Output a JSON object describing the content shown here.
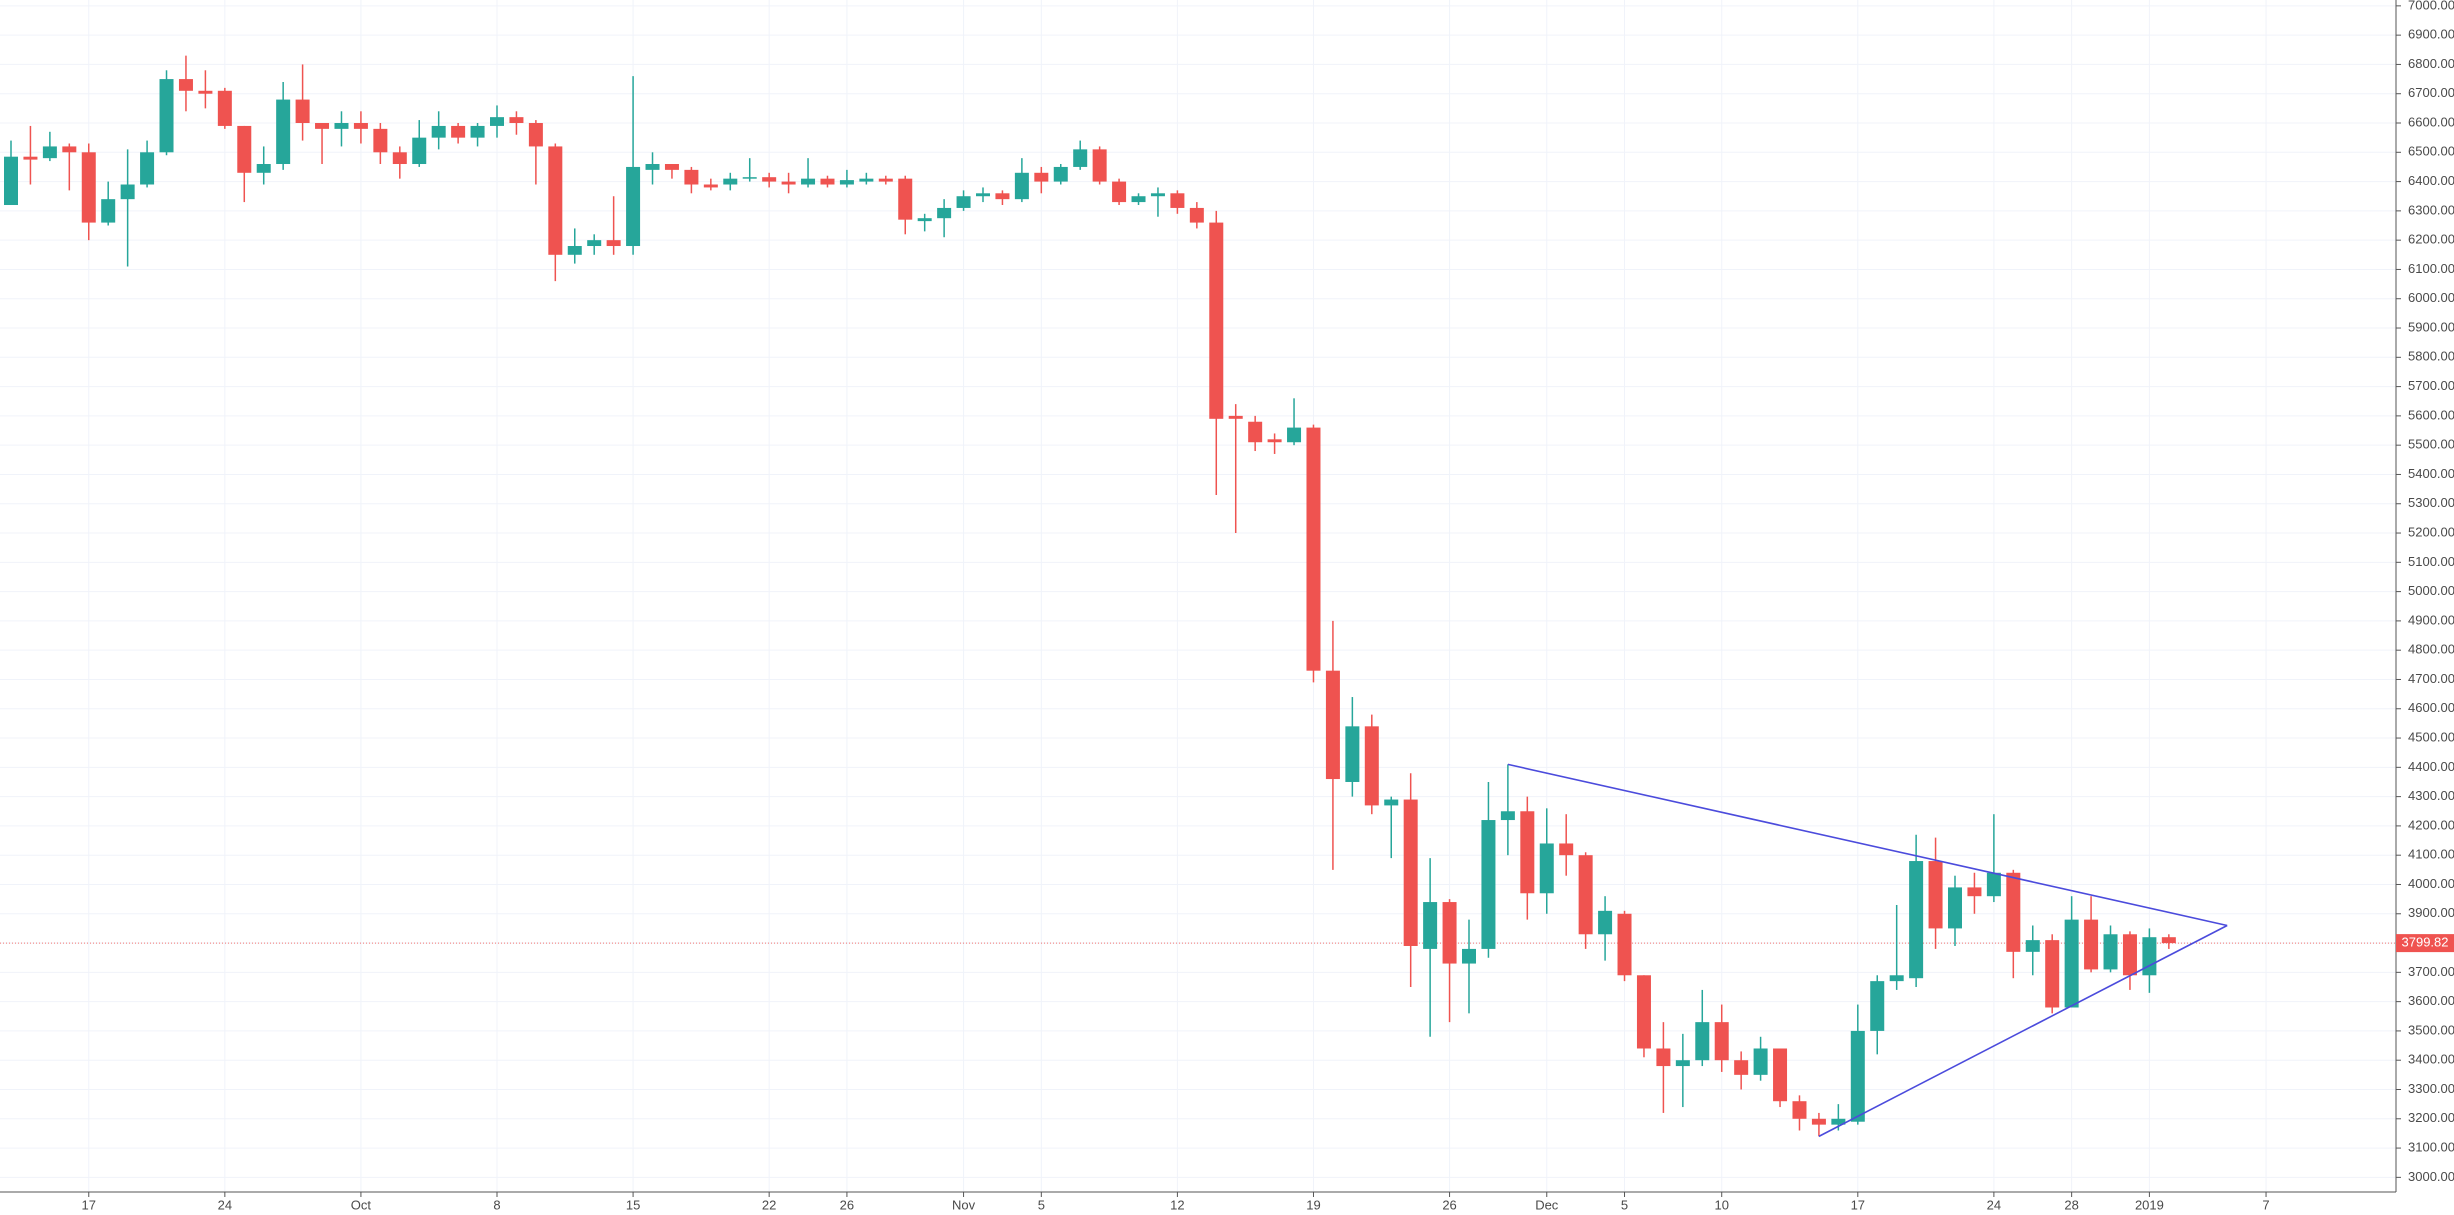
{
  "chart_data": {
    "type": "candlestick",
    "categories": [
      null,
      null,
      null,
      null,
      "17",
      null,
      null,
      null,
      null,
      null,
      null,
      "24",
      null,
      null,
      null,
      null,
      null,
      null,
      "Oct",
      null,
      null,
      null,
      null,
      null,
      null,
      "8",
      null,
      null,
      null,
      null,
      null,
      null,
      "15",
      null,
      null,
      null,
      null,
      null,
      null,
      "22",
      null,
      null,
      null,
      "26",
      null,
      null,
      null,
      null,
      null,
      "Nov",
      null,
      null,
      null,
      "5",
      null,
      null,
      null,
      null,
      null,
      null,
      "12",
      null,
      null,
      null,
      null,
      null,
      null,
      "19",
      null,
      null,
      null,
      null,
      null,
      null,
      "26",
      null,
      null,
      null,
      null,
      "Dec",
      null,
      null,
      null,
      "5",
      null,
      null,
      null,
      null,
      "10",
      null,
      null,
      null,
      null,
      null,
      null,
      "17",
      null,
      null,
      null,
      null,
      null,
      null,
      "24",
      null,
      null,
      null,
      "28",
      null,
      null,
      null,
      "2019",
      null,
      null,
      null,
      null,
      null,
      "7",
      null,
      null,
      null,
      null,
      null,
      null,
      null,
      null
    ],
    "open": [
      6320,
      6485,
      6480,
      6520,
      6500,
      6260,
      6340,
      6390,
      6500,
      6750,
      6710,
      6710,
      6590,
      6430,
      6460,
      6680,
      6600,
      6580,
      6600,
      6580,
      6500,
      6460,
      6550,
      6590,
      6550,
      6590,
      6620,
      6600,
      6520,
      6150,
      6180,
      6200,
      6180,
      6440,
      6460,
      6440,
      6390,
      6390,
      6410,
      6415,
      6400,
      6390,
      6410,
      6390,
      6400,
      6410,
      6410,
      6265,
      6275,
      6310,
      6350,
      6360,
      6340,
      6430,
      6400,
      6450,
      6510,
      6400,
      6330,
      6350,
      6360,
      6310,
      6260,
      5600,
      5580,
      5520,
      5510,
      5560,
      4730,
      4350,
      4540,
      4270,
      4290,
      3780,
      3940,
      3730,
      3780,
      4220,
      4250,
      3970,
      4140,
      4100,
      3830,
      3900,
      3690,
      3440,
      3380,
      3400,
      3530,
      3400,
      3350,
      3440,
      3260,
      3200,
      3180,
      3190,
      3500,
      3670,
      3680,
      4080,
      3850,
      3990,
      3960,
      4040,
      3770,
      3810,
      3580,
      3880,
      3710,
      3830,
      3690,
      3820,
      null,
      null,
      null,
      null,
      null,
      null,
      null,
      null,
      null,
      null,
      null,
      null,
      null
    ],
    "high": [
      6540,
      6590,
      6570,
      6530,
      6530,
      6400,
      6510,
      6540,
      6780,
      6830,
      6780,
      6720,
      6590,
      6520,
      6740,
      6800,
      6600,
      6640,
      6640,
      6600,
      6520,
      6610,
      6640,
      6600,
      6600,
      6660,
      6640,
      6610,
      6530,
      6240,
      6220,
      6350,
      6760,
      6500,
      6460,
      6450,
      6410,
      6430,
      6480,
      6430,
      6430,
      6480,
      6420,
      6440,
      6430,
      6420,
      6420,
      6290,
      6340,
      6370,
      6380,
      6370,
      6480,
      6450,
      6460,
      6540,
      6520,
      6410,
      6360,
      6380,
      6370,
      6330,
      6300,
      5640,
      5600,
      5540,
      5660,
      5570,
      4900,
      4640,
      4580,
      4300,
      4380,
      4090,
      3950,
      3880,
      4350,
      4410,
      4300,
      4260,
      4240,
      4110,
      3960,
      3910,
      3690,
      3530,
      3490,
      3640,
      3590,
      3430,
      3480,
      3440,
      3280,
      3220,
      3250,
      3590,
      3690,
      3930,
      4170,
      4160,
      4030,
      4040,
      4240,
      4050,
      3860,
      3830,
      3960,
      3960,
      3860,
      3840,
      3850,
      3830,
      null,
      null,
      null,
      null,
      null,
      null,
      null,
      null,
      null,
      null,
      null,
      null,
      null
    ],
    "low": [
      6320,
      6390,
      6470,
      6370,
      6200,
      6250,
      6110,
      6380,
      6490,
      6640,
      6650,
      6580,
      6330,
      6390,
      6440,
      6540,
      6460,
      6520,
      6530,
      6460,
      6410,
      6450,
      6510,
      6530,
      6520,
      6550,
      6560,
      6390,
      6060,
      6120,
      6150,
      6150,
      6150,
      6390,
      6410,
      6360,
      6370,
      6370,
      6400,
      6380,
      6360,
      6380,
      6380,
      6380,
      6390,
      6390,
      6220,
      6230,
      6210,
      6300,
      6330,
      6320,
      6330,
      6360,
      6390,
      6440,
      6390,
      6320,
      6320,
      6280,
      6290,
      6240,
      5330,
      5200,
      5480,
      5470,
      5500,
      4690,
      4050,
      4300,
      4240,
      4090,
      3650,
      3480,
      3530,
      3560,
      3750,
      4100,
      3880,
      3900,
      4030,
      3780,
      3740,
      3670,
      3410,
      3220,
      3240,
      3380,
      3360,
      3300,
      3330,
      3240,
      3160,
      3140,
      3160,
      3180,
      3420,
      3640,
      3650,
      3780,
      3790,
      3900,
      3940,
      3680,
      3690,
      3560,
      3580,
      3700,
      3700,
      3640,
      3630,
      3780,
      null,
      null,
      null,
      null,
      null,
      null,
      null,
      null,
      null,
      null,
      null,
      null,
      null
    ],
    "close": [
      6485,
      6475,
      6520,
      6500,
      6260,
      6340,
      6390,
      6500,
      6750,
      6710,
      6700,
      6590,
      6430,
      6460,
      6680,
      6600,
      6580,
      6600,
      6580,
      6500,
      6460,
      6550,
      6590,
      6550,
      6590,
      6620,
      6600,
      6520,
      6150,
      6180,
      6200,
      6180,
      6450,
      6460,
      6440,
      6390,
      6380,
      6410,
      6415,
      6400,
      6390,
      6410,
      6390,
      6405,
      6410,
      6400,
      6270,
      6275,
      6310,
      6350,
      6360,
      6340,
      6430,
      6400,
      6450,
      6510,
      6400,
      6330,
      6350,
      6360,
      6310,
      6260,
      5590,
      5590,
      5510,
      5510,
      5560,
      4730,
      4360,
      4540,
      4270,
      4290,
      3790,
      3940,
      3730,
      3780,
      4220,
      4250,
      3970,
      4140,
      4100,
      3830,
      3910,
      3690,
      3440,
      3380,
      3400,
      3530,
      3400,
      3350,
      3440,
      3260,
      3200,
      3180,
      3200,
      3500,
      3670,
      3690,
      4080,
      3850,
      3990,
      3960,
      4040,
      3770,
      3810,
      3580,
      3880,
      3710,
      3830,
      3690,
      3820,
      3799.82,
      null,
      null,
      null,
      null,
      null,
      null,
      null,
      null,
      null,
      null,
      null,
      null,
      null
    ],
    "up_color": "#26a69a",
    "down_color": "#ef5350",
    "last_price": 3799.82,
    "trendline_color": "#4b4bdc",
    "trendlines": [
      {
        "x": [
          77,
          114
        ],
        "y": [
          4410,
          3860
        ]
      },
      {
        "x": [
          93,
          114
        ],
        "y": [
          3140,
          3860
        ]
      }
    ],
    "grid": true,
    "ylim": [
      2950,
      7020
    ],
    "yticks": [
      {
        "value": 3000,
        "label": "3000.00"
      },
      {
        "value": 3100,
        "label": "3100.00"
      },
      {
        "value": 3200,
        "label": "3200.00"
      },
      {
        "value": 3300,
        "label": "3300.00"
      },
      {
        "value": 3400,
        "label": "3400.00"
      },
      {
        "value": 3500,
        "label": "3500.00"
      },
      {
        "value": 3600,
        "label": "3600.00"
      },
      {
        "value": 3700,
        "label": "3700.00"
      },
      {
        "value": 3800,
        "label": "3800.00"
      },
      {
        "value": 3900,
        "label": "3900.00"
      },
      {
        "value": 4000,
        "label": "4000.00"
      },
      {
        "value": 4100,
        "label": "4100.00"
      },
      {
        "value": 4200,
        "label": "4200.00"
      },
      {
        "value": 4300,
        "label": "4300.00"
      },
      {
        "value": 4400,
        "label": "4400.00"
      },
      {
        "value": 4500,
        "label": "4500.00"
      },
      {
        "value": 4600,
        "label": "4600.00"
      },
      {
        "value": 4700,
        "label": "4700.00"
      },
      {
        "value": 4800,
        "label": "4800.00"
      },
      {
        "value": 4900,
        "label": "4900.00"
      },
      {
        "value": 5000,
        "label": "5000.00"
      },
      {
        "value": 5100,
        "label": "5100.00"
      },
      {
        "value": 5200,
        "label": "5200.00"
      },
      {
        "value": 5300,
        "label": "5300.00"
      },
      {
        "value": 5400,
        "label": "5400.00"
      },
      {
        "value": 5500,
        "label": "5500.00"
      },
      {
        "value": 5600,
        "label": "5600.00"
      },
      {
        "value": 5700,
        "label": "5700.00"
      },
      {
        "value": 5800,
        "label": "5800.00"
      },
      {
        "value": 5900,
        "label": "5900.00"
      },
      {
        "value": 6000,
        "label": "6000.00"
      },
      {
        "value": 6100,
        "label": "6100.00"
      },
      {
        "value": 6200,
        "label": "6200.00"
      },
      {
        "value": 6300,
        "label": "6300.00"
      },
      {
        "value": 6400,
        "label": "6400.00"
      },
      {
        "value": 6500,
        "label": "6500.00"
      },
      {
        "value": 6600,
        "label": "6600.00"
      },
      {
        "value": 6700,
        "label": "6700.00"
      },
      {
        "value": 6800,
        "label": "6800.00"
      },
      {
        "value": 6900,
        "label": "6900.00"
      },
      {
        "value": 7000,
        "label": "7000.00"
      }
    ]
  }
}
